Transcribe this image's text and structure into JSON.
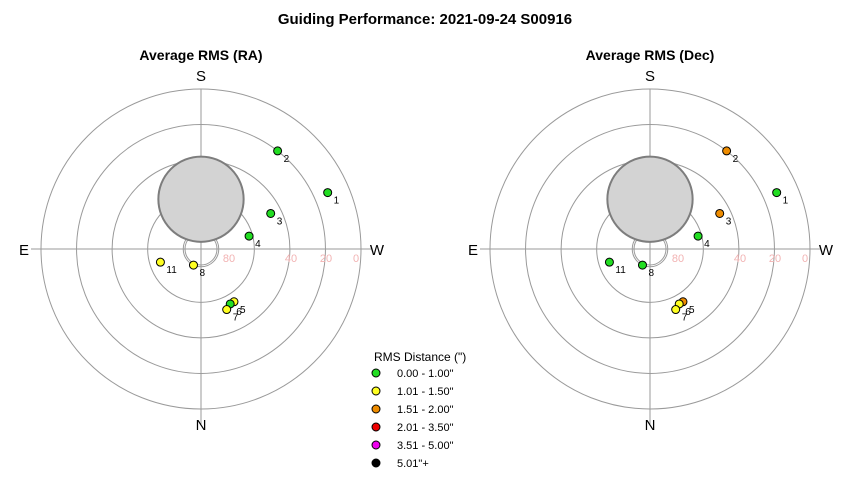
{
  "title": "Guiding Performance: 2021-09-24 S00916",
  "colors": {
    "0.00 - 1.00\"": "#22dd22",
    "1.01 - 1.50\"": "#ffff22",
    "1.51 - 2.00\"": "#ee8c00",
    "2.01 - 3.50\"": "#ee0000",
    "3.51 - 5.00\"": "#ee00ee",
    "5.01\"+": "#000000"
  },
  "legend": {
    "title": "RMS Distance (\")",
    "items": [
      "0.00 - 1.00\"",
      "1.01 - 1.50\"",
      "1.51 - 2.00\"",
      "2.01 - 3.50\"",
      "3.51 - 5.00\"",
      "5.01\"+"
    ]
  },
  "chart_data": [
    {
      "type": "scatter",
      "projection": "polar-sky",
      "title": "Average RMS (RA)",
      "compass": {
        "top": "S",
        "bottom": "N",
        "left": "E",
        "right": "W"
      },
      "radial_axis": {
        "label_field": "altitude",
        "ticks": [
          80,
          60,
          40,
          20,
          0
        ],
        "printed_ticks": [
          "80",
          "40",
          "20",
          "0"
        ],
        "range": [
          90,
          0
        ]
      },
      "moon": {
        "azimuth": 0,
        "altitude": 62,
        "radius_deg": 11
      },
      "points": [
        {
          "label": "1",
          "azimuth": 294,
          "altitude": 12,
          "category": "0.00 - 1.00\""
        },
        {
          "label": "2",
          "azimuth": 322,
          "altitude": 20,
          "category": "0.00 - 1.00\""
        },
        {
          "label": "3",
          "azimuth": 297,
          "altitude": 46,
          "category": "0.00 - 1.00\""
        },
        {
          "label": "4",
          "azimuth": 285,
          "altitude": 62,
          "category": "0.00 - 1.00\""
        },
        {
          "label": "5",
          "azimuth": 212,
          "altitude": 55,
          "category": "1.01 - 1.50\""
        },
        {
          "label": "6",
          "azimuth": 208,
          "altitude": 55,
          "category": "0.00 - 1.00\""
        },
        {
          "label": "7",
          "azimuth": 203,
          "altitude": 53,
          "category": "1.01 - 1.50\""
        },
        {
          "label": "8",
          "azimuth": 155,
          "altitude": 80,
          "category": "1.01 - 1.50\""
        },
        {
          "label": "11",
          "azimuth": 108,
          "altitude": 66,
          "category": "1.01 - 1.50\""
        }
      ]
    },
    {
      "type": "scatter",
      "projection": "polar-sky",
      "title": "Average RMS (Dec)",
      "compass": {
        "top": "S",
        "bottom": "N",
        "left": "E",
        "right": "W"
      },
      "radial_axis": {
        "label_field": "altitude",
        "ticks": [
          80,
          60,
          40,
          20,
          0
        ],
        "printed_ticks": [
          "80",
          "40",
          "20",
          "0"
        ],
        "range": [
          90,
          0
        ]
      },
      "moon": {
        "azimuth": 0,
        "altitude": 62,
        "radius_deg": 11
      },
      "points": [
        {
          "label": "1",
          "azimuth": 294,
          "altitude": 12,
          "category": "0.00 - 1.00\""
        },
        {
          "label": "2",
          "azimuth": 322,
          "altitude": 20,
          "category": "1.51 - 2.00\""
        },
        {
          "label": "3",
          "azimuth": 297,
          "altitude": 46,
          "category": "1.51 - 2.00\""
        },
        {
          "label": "4",
          "azimuth": 285,
          "altitude": 62,
          "category": "0.00 - 1.00\""
        },
        {
          "label": "5",
          "azimuth": 212,
          "altitude": 55,
          "category": "1.51 - 2.00\""
        },
        {
          "label": "6",
          "azimuth": 208,
          "altitude": 55,
          "category": "1.01 - 1.50\""
        },
        {
          "label": "7",
          "azimuth": 203,
          "altitude": 53,
          "category": "1.01 - 1.50\""
        },
        {
          "label": "8",
          "azimuth": 155,
          "altitude": 80,
          "category": "0.00 - 1.00\""
        },
        {
          "label": "11",
          "azimuth": 108,
          "altitude": 66,
          "category": "0.00 - 1.00\""
        }
      ]
    }
  ]
}
